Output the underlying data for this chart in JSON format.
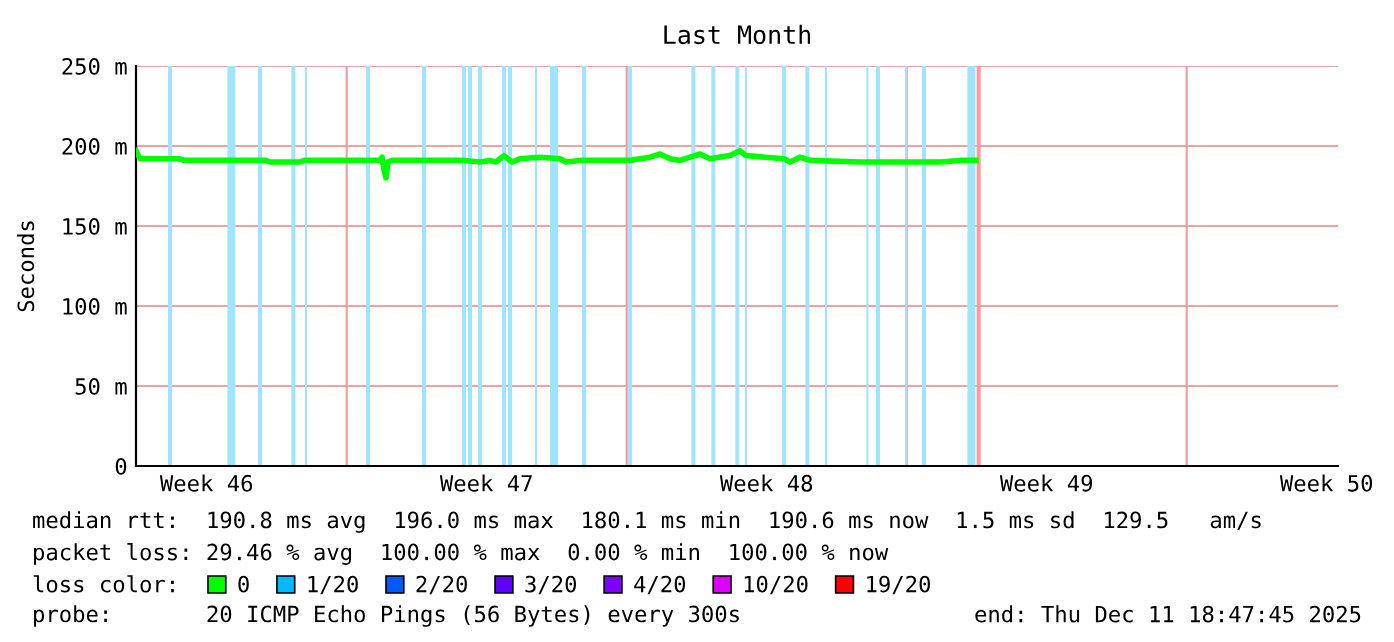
{
  "chart_data": {
    "type": "line",
    "title": "Last Month",
    "ylabel": "Seconds",
    "ylim": [
      0,
      250
    ],
    "yticks": [
      0,
      {
        "value": 50,
        "label": "50 m"
      },
      {
        "value": 100,
        "label": "100 m"
      },
      {
        "value": 150,
        "label": "150 m"
      },
      {
        "value": 200,
        "label": "200 m"
      },
      {
        "value": 250,
        "label": "250 m"
      }
    ],
    "xlim": [
      "2025-11-11T17:35",
      "2025-12-11T18:47"
    ],
    "xticks": [
      {
        "value": "2025-11-13T12:00",
        "label": "Week 46"
      },
      {
        "value": "2025-11-17T00:00",
        "label": null
      },
      {
        "value": "2025-11-20T12:00",
        "label": "Week 47"
      },
      {
        "value": "2025-11-24T00:00",
        "label": null
      },
      {
        "value": "2025-11-27T12:00",
        "label": "Week 48"
      },
      {
        "value": "2025-12-01T00:00",
        "label": null
      },
      {
        "value": "2025-12-04T12:00",
        "label": "Week 49"
      },
      {
        "value": "2025-12-08T00:00",
        "label": null
      },
      {
        "value": "2025-12-11T12:00",
        "label": "Week 50"
      }
    ],
    "grid": true,
    "legend": "bottom",
    "legend_title": "loss color:",
    "series": [
      {
        "name": "0",
        "color": "#00ff00",
        "x": [
          "2025-11-11T17:35",
          "2025-11-11T20:00",
          "2025-11-12T20:00",
          "2025-11-12T22:24",
          "2025-11-14T23:35",
          "2025-11-15T02:00",
          "2025-11-15T20:00",
          "2025-11-15T22:24",
          "2025-11-17T20:00",
          "2025-11-17T21:12",
          "2025-11-17T22:24",
          "2025-11-17T23:35",
          "2025-11-18T00:47",
          "2025-11-18T03:11",
          "2025-11-19T22:24",
          "2025-11-20T08:00",
          "2025-11-20T14:00",
          "2025-11-20T17:35",
          "2025-11-20T22:24",
          "2025-11-21T03:11",
          "2025-11-21T08:00",
          "2025-11-21T20:00",
          "2025-11-22T08:00",
          "2025-11-22T11:35",
          "2025-11-22T20:00",
          "2025-11-24T02:00",
          "2025-11-24T08:00",
          "2025-11-24T14:00",
          "2025-11-24T20:00",
          "2025-11-25T02:00",
          "2025-11-25T08:00",
          "2025-11-25T14:00",
          "2025-11-25T20:00",
          "2025-11-26T02:00",
          "2025-11-26T14:00",
          "2025-11-26T20:00",
          "2025-11-26T23:35",
          "2025-11-27T22:24",
          "2025-11-28T02:00",
          "2025-11-28T08:00",
          "2025-11-28T14:00",
          "2025-11-29T20:00",
          "2025-12-01T20:00",
          "2025-12-02T08:00",
          "2025-12-02T17:35"
        ],
        "values": [
          197,
          192,
          192,
          191,
          191,
          190,
          190,
          191,
          191,
          193,
          185,
          180,
          190,
          191,
          191,
          190,
          191,
          190,
          194,
          190,
          192,
          193,
          192,
          190,
          191,
          191,
          192,
          193,
          195,
          192,
          191,
          193,
          195,
          192,
          194,
          197,
          194,
          192,
          190,
          193,
          191,
          190,
          190,
          191,
          191
        ]
      },
      {
        "name": "1/20",
        "color": "#00b8ff"
      },
      {
        "name": "2/20",
        "color": "#0059ff"
      },
      {
        "name": "3/20",
        "color": "#5e00ff"
      },
      {
        "name": "4/20",
        "color": "#7e00ff"
      },
      {
        "name": "10/20",
        "color": "#dd00ff"
      },
      {
        "name": "19/20",
        "color": "#ff0000"
      }
    ],
    "bands": [
      {
        "axis": "x",
        "from": "2025-11-12T12:48",
        "to": "2025-11-12T15:12",
        "color": "#a0e4ff"
      },
      {
        "axis": "x",
        "from": "2025-11-14T00:25",
        "to": "2025-11-14T05:13",
        "color": "#a0e4ff"
      },
      {
        "axis": "x",
        "from": "2025-11-14T18:48",
        "to": "2025-11-14T21:12",
        "color": "#a0e4ff"
      },
      {
        "axis": "x",
        "from": "2025-11-15T14:49",
        "to": "2025-11-15T17:13",
        "color": "#a0e4ff"
      },
      {
        "axis": "x",
        "from": "2025-11-15T22:59",
        "to": "2025-11-16T00:11",
        "color": "#a0e4ff"
      },
      {
        "axis": "x",
        "from": "2025-11-17T11:35",
        "to": "2025-11-17T13:59",
        "color": "#a0e4ff"
      },
      {
        "axis": "x",
        "from": "2025-11-18T21:11",
        "to": "2025-11-18T23:35",
        "color": "#a0e4ff"
      },
      {
        "axis": "x",
        "from": "2025-11-19T21:12",
        "to": "2025-11-19T23:36",
        "color": "#a0e4ff"
      },
      {
        "axis": "x",
        "from": "2025-11-20T00:48",
        "to": "2025-11-20T03:12",
        "color": "#a0e4ff"
      },
      {
        "axis": "x",
        "from": "2025-11-20T06:48",
        "to": "2025-11-20T09:12",
        "color": "#a0e4ff"
      },
      {
        "axis": "x",
        "from": "2025-11-20T21:12",
        "to": "2025-11-20T23:36",
        "color": "#a0e4ff"
      },
      {
        "axis": "x",
        "from": "2025-11-21T00:48",
        "to": "2025-11-21T03:12",
        "color": "#a0e4ff"
      },
      {
        "axis": "x",
        "from": "2025-11-21T16:59",
        "to": "2025-11-21T18:11",
        "color": "#a0e4ff"
      },
      {
        "axis": "x",
        "from": "2025-11-22T01:59",
        "to": "2025-11-22T06:47",
        "color": "#a0e4ff"
      },
      {
        "axis": "x",
        "from": "2025-11-22T21:12",
        "to": "2025-11-22T23:36",
        "color": "#a0e4ff"
      },
      {
        "axis": "x",
        "from": "2025-11-24T00:48",
        "to": "2025-11-24T03:12",
        "color": "#a0e4ff"
      },
      {
        "axis": "x",
        "from": "2025-11-25T14:49",
        "to": "2025-11-25T17:13",
        "color": "#a0e4ff"
      },
      {
        "axis": "x",
        "from": "2025-11-26T02:49",
        "to": "2025-11-26T05:13",
        "color": "#a0e4ff"
      },
      {
        "axis": "x",
        "from": "2025-11-26T17:13",
        "to": "2025-11-26T19:37",
        "color": "#a0e4ff"
      },
      {
        "axis": "x",
        "from": "2025-11-26T22:59",
        "to": "2025-11-27T00:11",
        "color": "#a0e4ff"
      },
      {
        "axis": "x",
        "from": "2025-11-27T21:12",
        "to": "2025-11-27T23:36",
        "color": "#a0e4ff"
      },
      {
        "axis": "x",
        "from": "2025-11-28T11:13",
        "to": "2025-11-28T13:37",
        "color": "#a0e4ff"
      },
      {
        "axis": "x",
        "from": "2025-11-28T22:59",
        "to": "2025-11-29T00:11",
        "color": "#a0e4ff"
      },
      {
        "axis": "x",
        "from": "2025-11-29T23:49",
        "to": "2025-11-30T01:01",
        "color": "#a0e4ff"
      },
      {
        "axis": "x",
        "from": "2025-11-30T05:35",
        "to": "2025-11-30T07:59",
        "color": "#a0e4ff"
      },
      {
        "axis": "x",
        "from": "2025-11-30T22:59",
        "to": "2025-12-01T00:11",
        "color": "#a0e4ff"
      },
      {
        "axis": "x",
        "from": "2025-12-01T09:11",
        "to": "2025-12-01T11:35",
        "color": "#a0e4ff"
      },
      {
        "axis": "x",
        "from": "2025-12-02T12:25",
        "to": "2025-12-02T17:13",
        "color": "#a0e4ff"
      },
      {
        "axis": "x",
        "from": "2025-12-02T17:59",
        "to": "2025-12-02T20:23",
        "color": "#ff9a9a"
      }
    ],
    "annotations": [
      "median rtt:  190.8 ms avg  196.0 ms max  180.1 ms min  190.6 ms now  1.5 ms sd  129.5   am/s",
      "packet loss: 29.46 % avg  100.00 % max  0.00 % min  100.00 % now",
      "probe:       20 ICMP Echo Pings (56 Bytes) every 300s",
      "end: Thu Dec 11 18:47:45 2025"
    ]
  }
}
